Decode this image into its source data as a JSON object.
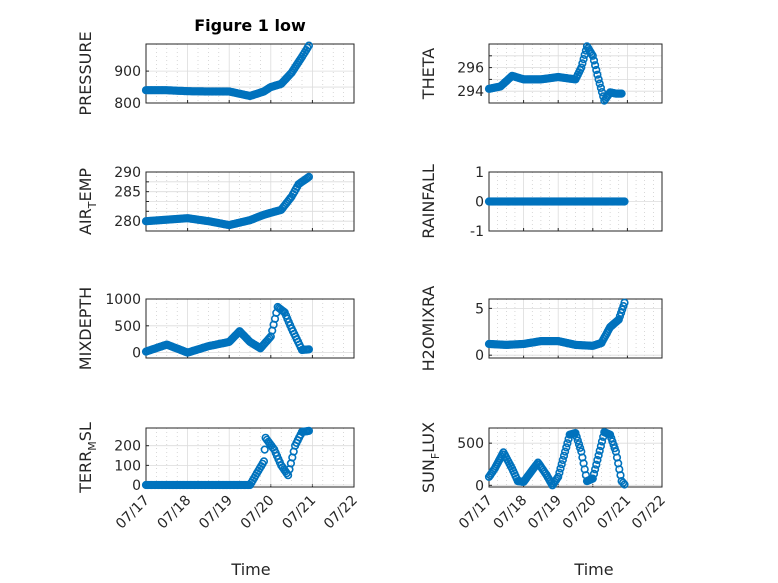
{
  "figure": {
    "title": "Figure 1 low"
  },
  "colors": {
    "marker": "#0072BD"
  },
  "chart_data": [
    {
      "type": "scatter",
      "ylabel": "PRESSURE",
      "ylim": [
        800,
        985
      ],
      "yticks": [
        800,
        850,
        900
      ],
      "yticklabels": [
        "800",
        "",
        "900"
      ],
      "title": "Figure 1 low",
      "x": [
        "07/17 00:00",
        "07/17 12:00",
        "07/18 00:00",
        "07/18 12:00",
        "07/19 00:00",
        "07/19 12:00",
        "07/19 20:00",
        "07/20 00:00",
        "07/20 06:00",
        "07/20 12:00",
        "07/20 18:00",
        "07/20 22:00"
      ],
      "y": [
        840,
        840,
        837,
        836,
        836,
        822,
        836,
        850,
        860,
        895,
        945,
        980
      ]
    },
    {
      "type": "scatter",
      "ylabel": "THETA",
      "ylim": [
        293,
        298
      ],
      "yticks": [
        293,
        294,
        295,
        296,
        297,
        298
      ],
      "yticklabels": [
        "",
        "294",
        "",
        "296",
        "",
        ""
      ],
      "x": [
        "07/17 00:00",
        "07/17 08:00",
        "07/17 16:00",
        "07/18 00:00",
        "07/18 12:00",
        "07/19 00:00",
        "07/19 12:00",
        "07/19 16:00",
        "07/19 20:00",
        "07/20 00:00",
        "07/20 04:00",
        "07/20 08:00",
        "07/20 12:00",
        "07/20 16:00",
        "07/20 20:00"
      ],
      "y": [
        294.2,
        294.4,
        295.3,
        295.0,
        295.0,
        295.2,
        295.0,
        296.0,
        297.8,
        297.0,
        295.0,
        293.2,
        293.9,
        293.8,
        293.8
      ]
    },
    {
      "type": "scatter",
      "ylabel": "AIR_TEMP",
      "ylim": [
        278,
        290
      ],
      "yticks": [
        278,
        280,
        282,
        284,
        286,
        288,
        290
      ],
      "yticklabels": [
        "",
        "280",
        "",
        "",
        "285",
        "",
        "290"
      ],
      "x": [
        "07/17 00:00",
        "07/17 12:00",
        "07/18 00:00",
        "07/18 12:00",
        "07/19 00:00",
        "07/19 12:00",
        "07/19 20:00",
        "07/20 06:00",
        "07/20 12:00",
        "07/20 16:00",
        "07/20 22:00"
      ],
      "y": [
        280.0,
        280.3,
        280.6,
        280.0,
        279.2,
        280.2,
        281.3,
        282.3,
        285.0,
        287.5,
        289.0
      ]
    },
    {
      "type": "scatter",
      "ylabel": "RAINFALL",
      "ylim": [
        -1,
        1
      ],
      "yticks": [
        -1,
        0,
        1
      ],
      "yticklabels": [
        "-1",
        "0",
        "1"
      ],
      "x": [
        "07/17 00:00",
        "07/17 12:00",
        "07/18 00:00",
        "07/18 12:00",
        "07/19 00:00",
        "07/19 12:00",
        "07/20 00:00",
        "07/20 12:00",
        "07/20 22:00"
      ],
      "y": [
        0,
        0,
        0,
        0,
        0,
        0,
        0,
        0,
        0
      ]
    },
    {
      "type": "scatter",
      "ylabel": "MIXDEPTH",
      "ylim": [
        -100,
        1000
      ],
      "yticks": [
        0,
        500,
        1000
      ],
      "yticklabels": [
        "0",
        "500",
        "1000"
      ],
      "x": [
        "07/17 00:00",
        "07/17 12:00",
        "07/18 00:00",
        "07/18 12:00",
        "07/19 00:00",
        "07/19 06:00",
        "07/19 12:00",
        "07/19 18:00",
        "07/20 00:00",
        "07/20 04:00",
        "07/20 08:00",
        "07/20 12:00",
        "07/20 18:00",
        "07/20 22:00"
      ],
      "y": [
        20,
        150,
        0,
        120,
        200,
        400,
        200,
        80,
        300,
        850,
        750,
        450,
        50,
        60
      ]
    },
    {
      "type": "scatter",
      "ylabel": "H2OMIXRA",
      "ylim": [
        -0.3,
        6
      ],
      "yticks": [
        0,
        5
      ],
      "yticklabels": [
        "0",
        "5"
      ],
      "x": [
        "07/17 00:00",
        "07/17 12:00",
        "07/18 00:00",
        "07/18 12:00",
        "07/19 00:00",
        "07/19 12:00",
        "07/20 00:00",
        "07/20 06:00",
        "07/20 12:00",
        "07/20 18:00",
        "07/20 22:00"
      ],
      "y": [
        1.2,
        1.1,
        1.2,
        1.5,
        1.5,
        1.1,
        1.0,
        1.3,
        3.0,
        3.8,
        5.6
      ]
    },
    {
      "type": "scatter",
      "ylabel": "TERR_MSL",
      "ylim": [
        -10,
        290
      ],
      "yticks": [
        0,
        100,
        200
      ],
      "yticklabels": [
        "0",
        "100",
        "200"
      ],
      "x": [
        "07/17 00:00",
        "07/17 12:00",
        "07/18 00:00",
        "07/18 12:00",
        "07/19 00:00",
        "07/19 12:00",
        "07/19 20:00",
        "07/19 21:00",
        "07/20 02:00",
        "07/20 06:00",
        "07/20 10:00",
        "07/20 14:00",
        "07/20 18:00",
        "07/20 22:00"
      ],
      "y": [
        0,
        0,
        0,
        0,
        0,
        0,
        120,
        240,
        180,
        100,
        50,
        200,
        270,
        275
      ]
    },
    {
      "type": "scatter",
      "ylabel": "SUN_FLUX",
      "ylim": [
        -20,
        680
      ],
      "yticks": [
        0,
        500
      ],
      "yticklabels": [
        "0",
        "500"
      ],
      "x": [
        "07/17 00:00",
        "07/17 04:00",
        "07/17 10:00",
        "07/17 16:00",
        "07/17 20:00",
        "07/18 00:00",
        "07/18 06:00",
        "07/18 10:00",
        "07/18 16:00",
        "07/18 20:00",
        "07/19 00:00",
        "07/19 08:00",
        "07/19 12:00",
        "07/19 16:00",
        "07/19 20:00",
        "07/20 00:00",
        "07/20 08:00",
        "07/20 12:00",
        "07/20 16:00",
        "07/20 20:00",
        "07/20 22:00"
      ],
      "y": [
        100,
        200,
        390,
        200,
        50,
        40,
        180,
        270,
        120,
        0,
        100,
        600,
        620,
        400,
        50,
        80,
        630,
        600,
        400,
        50,
        10
      ]
    }
  ],
  "axes_text": {
    "xlabel": "Time",
    "xticklabels": [
      "07/17",
      "07/18",
      "07/19",
      "07/20",
      "07/21",
      "07/22"
    ]
  }
}
